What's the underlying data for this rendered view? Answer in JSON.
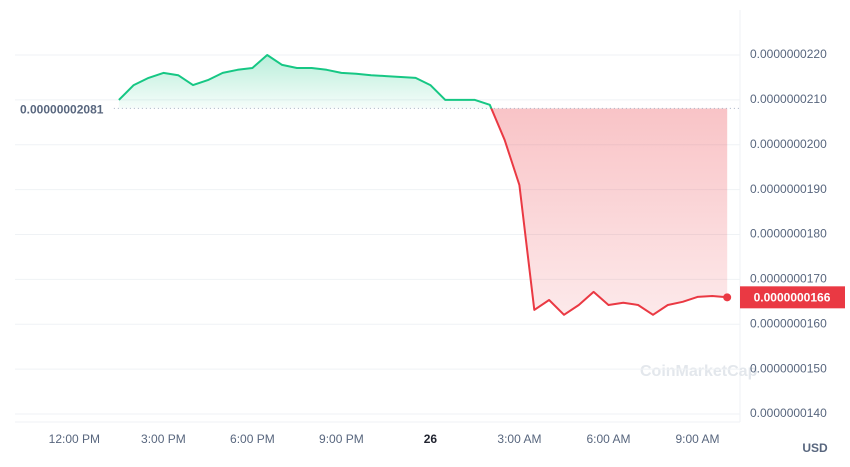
{
  "chart_data": {
    "type": "line",
    "categories": [
      null,
      null,
      null,
      null,
      "12:00 PM",
      null,
      null,
      null,
      null,
      null,
      "3:00 PM",
      null,
      null,
      null,
      null,
      null,
      "6:00 PM",
      null,
      null,
      null,
      null,
      null,
      "9:00 PM",
      null,
      null,
      null,
      null,
      null,
      "26",
      null,
      null,
      null,
      null,
      null,
      "3:00 AM",
      null,
      null,
      null,
      null,
      null,
      "6:00 AM",
      null,
      null,
      null,
      null,
      null,
      "9:00 AM",
      null,
      null,
      null
    ],
    "values": [
      null,
      null,
      null,
      null,
      null,
      null,
      null,
      2.1e-08,
      2.133e-08,
      2.149e-08,
      2.16e-08,
      2.155e-08,
      2.133e-08,
      2.144e-08,
      2.16e-08,
      2.167e-08,
      2.171e-08,
      2.2e-08,
      2.178e-08,
      2.171e-08,
      2.171e-08,
      2.167e-08,
      2.16e-08,
      2.158e-08,
      2.155e-08,
      2.153e-08,
      2.151e-08,
      2.149e-08,
      2.133e-08,
      2.1e-08,
      2.1e-08,
      2.1e-08,
      2.089e-08,
      2.011e-08,
      1.91e-08,
      1.632e-08,
      1.654e-08,
      1.621e-08,
      1.643e-08,
      1.672e-08,
      1.643e-08,
      1.648e-08,
      1.643e-08,
      1.621e-08,
      1.643e-08,
      1.65e-08,
      1.661e-08,
      1.663e-08,
      1.66e-08,
      null
    ],
    "up_color": "#16c784",
    "down_color": "#ea3943",
    "baseline": {
      "value": 2.081e-08,
      "label": "0.00000002081"
    },
    "current_price": {
      "value": 1.66e-08,
      "label": "0.0000000166"
    },
    "ylim": [
      1.4e-08,
      2.2e-08
    ],
    "yticks": [
      {
        "value": 1.4e-08,
        "label": "0.0000000140"
      },
      {
        "value": 1.5e-08,
        "label": "0.0000000150"
      },
      {
        "value": 1.6e-08,
        "label": "0.0000000160"
      },
      {
        "value": 1.7e-08,
        "label": "0.0000000170"
      },
      {
        "value": 1.8e-08,
        "label": "0.0000000180"
      },
      {
        "value": 1.9e-08,
        "label": "0.0000000190"
      },
      {
        "value": 2e-08,
        "label": "0.0000000200"
      },
      {
        "value": 2.1e-08,
        "label": "0.0000000210"
      },
      {
        "value": 2.2e-08,
        "label": "0.0000000220"
      }
    ],
    "grid": true,
    "currency": "USD",
    "watermark": "CoinMarketCap"
  }
}
